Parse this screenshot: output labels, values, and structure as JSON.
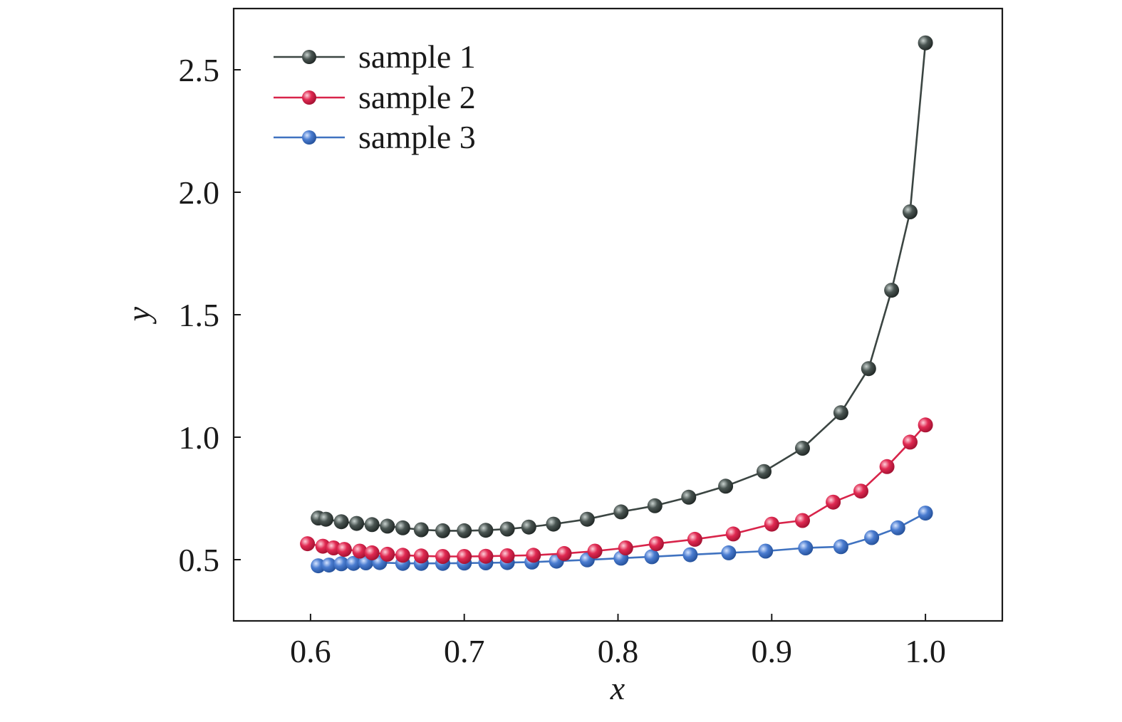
{
  "chart_data": {
    "type": "line",
    "xlabel": "x",
    "ylabel": "y",
    "xlim": [
      0.55,
      1.05
    ],
    "ylim": [
      0.25,
      2.75
    ],
    "xticks": [
      0.6,
      0.7,
      0.8,
      0.9,
      1.0
    ],
    "yticks": [
      0.5,
      1.0,
      1.5,
      2.0,
      2.5
    ],
    "xtick_labels": [
      "0.6",
      "0.7",
      "0.8",
      "0.9",
      "1.0"
    ],
    "ytick_labels": [
      "0.5",
      "1.0",
      "1.5",
      "2.0",
      "2.5"
    ],
    "grid": false,
    "legend_position": "top-left",
    "series": [
      {
        "name": "sample 1",
        "color": "#3b4542",
        "x": [
          0.605,
          0.61,
          0.62,
          0.63,
          0.64,
          0.65,
          0.66,
          0.672,
          0.686,
          0.7,
          0.714,
          0.728,
          0.742,
          0.758,
          0.78,
          0.802,
          0.824,
          0.846,
          0.87,
          0.895,
          0.92,
          0.945,
          0.963,
          0.978,
          0.99,
          1.0
        ],
        "y": [
          0.67,
          0.665,
          0.655,
          0.648,
          0.643,
          0.637,
          0.63,
          0.622,
          0.618,
          0.618,
          0.62,
          0.625,
          0.633,
          0.645,
          0.665,
          0.695,
          0.72,
          0.755,
          0.8,
          0.86,
          0.955,
          1.1,
          1.28,
          1.6,
          1.92,
          2.61
        ]
      },
      {
        "name": "sample 2",
        "color": "#d8244a",
        "x": [
          0.598,
          0.608,
          0.615,
          0.622,
          0.632,
          0.64,
          0.65,
          0.66,
          0.672,
          0.686,
          0.7,
          0.714,
          0.728,
          0.745,
          0.765,
          0.785,
          0.805,
          0.825,
          0.85,
          0.875,
          0.9,
          0.92,
          0.94,
          0.958,
          0.975,
          0.99,
          1.0
        ],
        "y": [
          0.565,
          0.555,
          0.548,
          0.542,
          0.535,
          0.528,
          0.522,
          0.518,
          0.515,
          0.513,
          0.513,
          0.514,
          0.516,
          0.518,
          0.525,
          0.535,
          0.548,
          0.565,
          0.583,
          0.605,
          0.645,
          0.66,
          0.735,
          0.78,
          0.88,
          0.98,
          1.05
        ]
      },
      {
        "name": "sample 3",
        "color": "#3f72c0",
        "x": [
          0.605,
          0.612,
          0.62,
          0.628,
          0.636,
          0.645,
          0.66,
          0.672,
          0.686,
          0.7,
          0.714,
          0.728,
          0.744,
          0.76,
          0.78,
          0.802,
          0.822,
          0.847,
          0.872,
          0.896,
          0.922,
          0.945,
          0.965,
          0.982,
          1.0
        ],
        "y": [
          0.475,
          0.478,
          0.483,
          0.485,
          0.487,
          0.488,
          0.485,
          0.485,
          0.485,
          0.486,
          0.487,
          0.488,
          0.49,
          0.494,
          0.499,
          0.506,
          0.512,
          0.52,
          0.528,
          0.535,
          0.548,
          0.553,
          0.59,
          0.63,
          0.69
        ]
      }
    ]
  }
}
